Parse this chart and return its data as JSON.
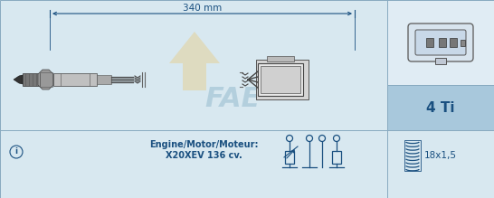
{
  "bg_color": "#d8e8f0",
  "bg_right_top": "#e0ecf4",
  "bg_right_mid": "#a8c8dc",
  "border_color": "#88aac0",
  "text_color": "#1a5080",
  "dim_text": "340 mm",
  "engine_line1": "Engine/Motor/Moteur:",
  "engine_line2": "X20XEV 136 cv.",
  "label_4ti": "4 Ti",
  "label_thread": "18x1,5",
  "fig_width": 5.46,
  "fig_height": 2.19,
  "dpi": 100,
  "watermark_arrow_color": "#e8c878",
  "watermark_text_color": "#90b8cc",
  "sensor_dark": "#333333",
  "sensor_mid": "#777777",
  "sensor_light": "#aaaaaa",
  "wire_color": "#444444"
}
